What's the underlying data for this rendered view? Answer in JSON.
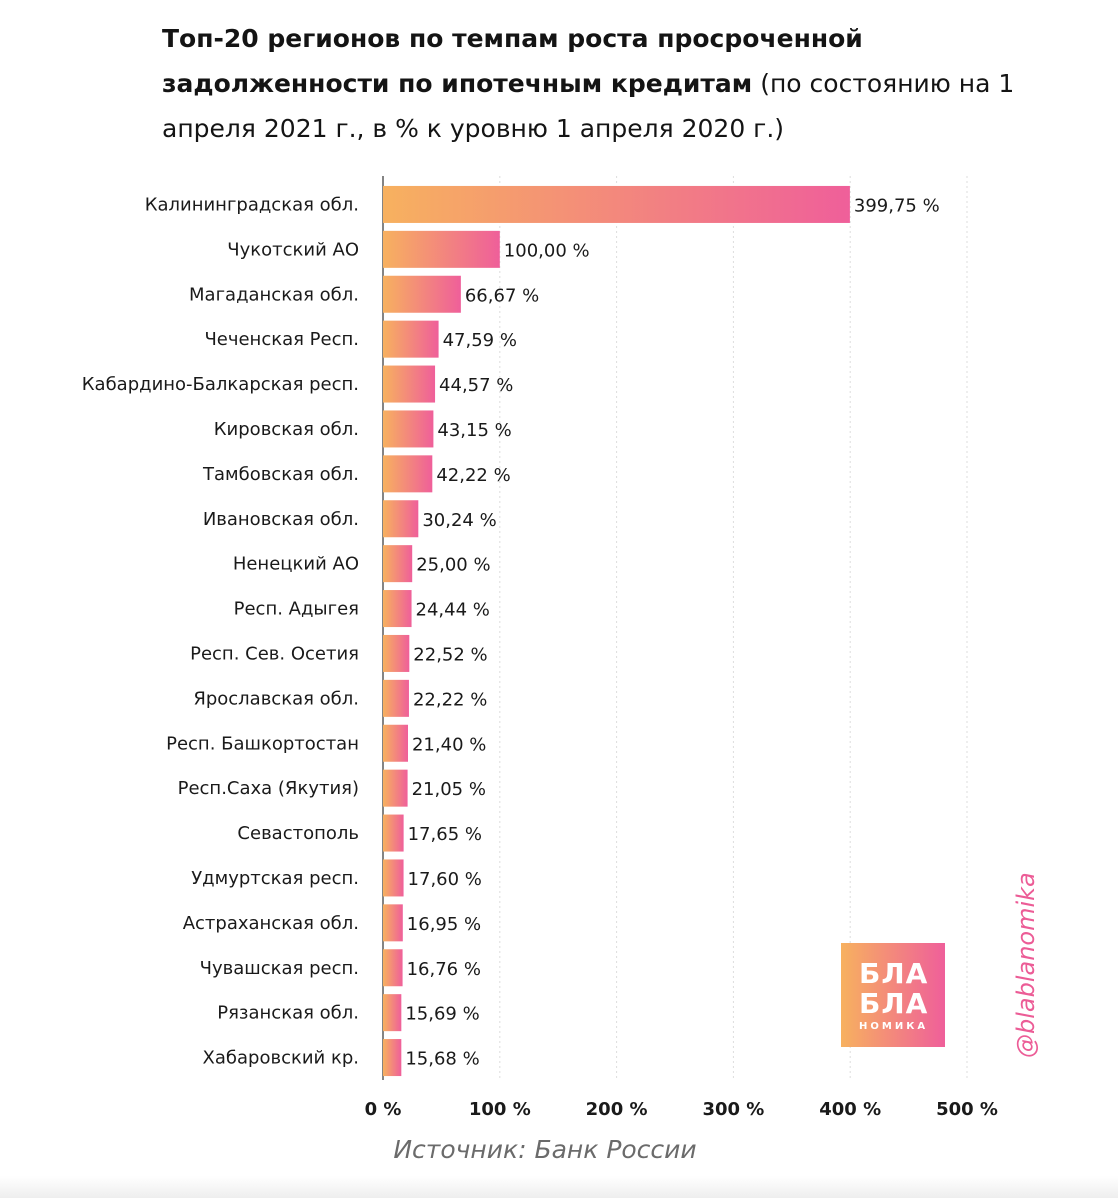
{
  "title": {
    "bold": "Топ-20 регионов по темпам роста просроченной задолженности по ипотечным кредитам",
    "normal": "(по состоянию на 1 апреля 2021 г., в % к уровню 1 апреля 2020 г.)"
  },
  "source": "Источник: Банк России",
  "logo": {
    "line1": "БЛА",
    "line2": "БЛА",
    "line3": "НОМИКА"
  },
  "handle": "@blablanomika",
  "colors": {
    "bar_start": "#f7b15f",
    "bar_end": "#ef5f9a",
    "grid": "#dddddd",
    "axis": "#333333"
  },
  "chart_data": {
    "type": "bar",
    "orientation": "horizontal",
    "categories": [
      "Калининградская обл.",
      "Чукотский АО",
      "Магаданская обл.",
      "Чеченская Респ.",
      "Кабардино-Балкарская респ.",
      "Кировская обл.",
      "Тамбовская обл.",
      "Ивановская обл.",
      "Ненецкий АО",
      "Респ. Адыгея",
      "Респ. Сев. Осетия",
      "Ярославская обл.",
      "Респ. Башкортостан",
      "Респ.Саха (Якутия)",
      "Севастополь",
      "Удмуртская респ.",
      "Астраханская обл.",
      "Чувашская респ.",
      "Рязанская обл.",
      "Хабаровский кр."
    ],
    "values": [
      399.75,
      100.0,
      66.67,
      47.59,
      44.57,
      43.15,
      42.22,
      30.24,
      25.0,
      24.44,
      22.52,
      22.22,
      21.4,
      21.05,
      17.65,
      17.6,
      16.95,
      16.76,
      15.69,
      15.68
    ],
    "value_labels": [
      "399,75 %",
      "100,00 %",
      "66,67 %",
      "47,59 %",
      "44,57 %",
      "43,15 %",
      "42,22 %",
      "30,24 %",
      "25,00 %",
      "24,44 %",
      "22,52 %",
      "22,22 %",
      "21,40 %",
      "21,05 %",
      "17,65 %",
      "17,60 %",
      "16,95 %",
      "16,76 %",
      "15,69 %",
      "15,68 %"
    ],
    "xlim": [
      0,
      500
    ],
    "xticks": [
      0,
      100,
      200,
      300,
      400,
      500
    ],
    "xtick_labels": [
      "0 %",
      "100 %",
      "200 %",
      "300 %",
      "400 %",
      "500 %"
    ],
    "grid": true,
    "legend": "none"
  }
}
